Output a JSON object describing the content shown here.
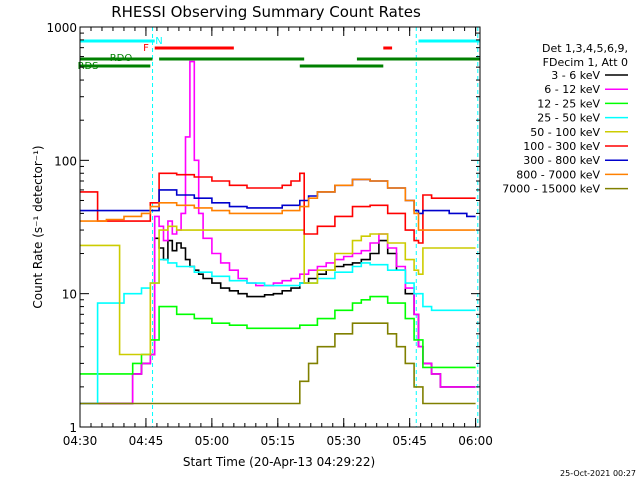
{
  "chart_data": {
    "type": "line",
    "title": "RHESSI Observing Summary Count Rates",
    "ylabel": "Count Rate (s⁻¹ detector⁻¹)",
    "xlabel": "Start Time (20-Apr-13 04:29:22)",
    "yscale": "log",
    "ylim": [
      1,
      1000
    ],
    "xlim_minutes": [
      270,
      361
    ],
    "y_ticks": [
      {
        "value": 1,
        "label": "1"
      },
      {
        "value": 10,
        "label": "10"
      },
      {
        "value": 100,
        "label": "100"
      },
      {
        "value": 1000,
        "label": "1000"
      }
    ],
    "x_ticks": [
      {
        "value": 270,
        "label": "04:30"
      },
      {
        "value": 285,
        "label": "04:45"
      },
      {
        "value": 300,
        "label": "05:00"
      },
      {
        "value": 315,
        "label": "05:15"
      },
      {
        "value": 330,
        "label": "05:30"
      },
      {
        "value": 345,
        "label": "05:45"
      },
      {
        "value": 360,
        "label": "06:00"
      }
    ],
    "legend_header": [
      "Det 1,3,4,5,6,9,",
      "FDecim 1, Att 0"
    ],
    "legend_placement": "right",
    "timestamp": "25-Oct-2021 00:27",
    "flags": [
      {
        "label": "N",
        "color": "#00ffff",
        "segments": [
          [
            270,
            287
          ],
          [
            347,
            361
          ]
        ]
      },
      {
        "label": "F",
        "color": "#ff0000",
        "segments": [
          [
            287,
            305
          ],
          [
            339,
            341
          ]
        ]
      },
      {
        "label": "RDO",
        "color": "#008000",
        "segments": [
          [
            270,
            286.5
          ],
          [
            288,
            321
          ],
          [
            333,
            361
          ]
        ]
      },
      {
        "label": "RDS",
        "color": "#008000",
        "segments": [
          [
            270,
            286
          ],
          [
            320,
            339
          ]
        ]
      }
    ],
    "vlines": [
      {
        "x": 286.5,
        "color": "#00ffff"
      },
      {
        "x": 346.5,
        "color": "#00ffff"
      },
      {
        "x": 360.5,
        "color": "#00ffff"
      }
    ],
    "series": [
      {
        "name": "3 - 6 keV",
        "color": "#000000",
        "x": [
          270,
          272,
          274,
          276,
          278,
          280,
          282,
          284,
          286,
          287,
          288,
          289,
          290,
          291,
          292,
          293,
          294,
          295,
          296,
          297,
          298,
          300,
          302,
          304,
          306,
          308,
          310,
          312,
          314,
          316,
          318,
          320,
          322,
          324,
          326,
          328,
          330,
          332,
          334,
          336,
          338,
          340,
          342,
          344,
          346,
          347,
          348,
          350,
          352,
          354,
          356,
          358,
          360
        ],
        "y": [
          1.5,
          1.5,
          1.5,
          1.5,
          1.5,
          1.5,
          2.5,
          3.0,
          3.5,
          26,
          22,
          18,
          25,
          21,
          24,
          22,
          18,
          16,
          15,
          14,
          13,
          12,
          11,
          10.5,
          10,
          9.5,
          9.5,
          9.8,
          10,
          10.5,
          11,
          12,
          13,
          14,
          15,
          16,
          16.5,
          17,
          18,
          20,
          25,
          20,
          15,
          10,
          7,
          4,
          3,
          2.5,
          2,
          2,
          2,
          2,
          2
        ]
      },
      {
        "name": "6 - 12 keV",
        "color": "#ff00ff",
        "x": [
          270,
          272,
          274,
          276,
          278,
          280,
          282,
          284,
          286,
          287,
          288,
          289,
          290,
          291,
          292,
          293,
          294,
          295,
          296,
          297,
          298,
          300,
          302,
          304,
          306,
          308,
          310,
          312,
          314,
          316,
          318,
          320,
          322,
          324,
          326,
          328,
          330,
          332,
          334,
          336,
          338,
          340,
          342,
          344,
          346,
          347,
          348,
          350,
          352,
          354,
          356,
          358,
          360
        ],
        "y": [
          1.5,
          1.5,
          1.5,
          1.5,
          1.5,
          1.5,
          2.5,
          3.0,
          3.5,
          38,
          32,
          25,
          35,
          28,
          30,
          40,
          150,
          550,
          100,
          40,
          26,
          20,
          17,
          15,
          13,
          12,
          11.5,
          11.5,
          12,
          12.5,
          13,
          14,
          15,
          16,
          17,
          18,
          19,
          20,
          21,
          24,
          28,
          22,
          16,
          11,
          7,
          4,
          3,
          2.5,
          2,
          2,
          2,
          2,
          2
        ]
      },
      {
        "name": "12 - 25 keV",
        "color": "#00ff00",
        "x": [
          270,
          274,
          278,
          282,
          284,
          286,
          288,
          292,
          296,
          300,
          304,
          308,
          312,
          316,
          320,
          324,
          328,
          332,
          334,
          336,
          340,
          344,
          346,
          348,
          352,
          356,
          360
        ],
        "y": [
          2.5,
          2.5,
          2.5,
          3.0,
          3.5,
          4.5,
          8,
          7,
          6.5,
          6,
          5.8,
          5.5,
          5.5,
          5.5,
          5.8,
          6.5,
          7.5,
          8.5,
          9,
          9.5,
          8.5,
          6.5,
          4.5,
          2.8,
          2.8,
          2.8,
          2.8
        ]
      },
      {
        "name": "25 - 50 keV",
        "color": "#00ffff",
        "x": [
          270,
          272,
          274,
          276,
          278,
          280,
          282,
          284,
          286,
          288,
          290,
          292,
          296,
          300,
          304,
          308,
          312,
          316,
          320,
          324,
          328,
          332,
          334,
          336,
          340,
          344,
          346,
          348,
          350,
          354,
          358,
          360
        ],
        "y": [
          1.5,
          1.5,
          8.5,
          8.5,
          8.5,
          10,
          10,
          11,
          12,
          18,
          17,
          16,
          14.5,
          13.5,
          12.5,
          12,
          11.5,
          11.5,
          12,
          13,
          14.5,
          16,
          17,
          16.5,
          15,
          12,
          10,
          8,
          7.5,
          7.5,
          7.5,
          7.5
        ]
      },
      {
        "name": "50 - 100 keV",
        "color": "#cccc00",
        "x": [
          270,
          272,
          274,
          276,
          278,
          279,
          281,
          284,
          286,
          288,
          290,
          292,
          296,
          300,
          304,
          308,
          312,
          316,
          320,
          321,
          324,
          328,
          332,
          334,
          336,
          340,
          344,
          346,
          347,
          348,
          350,
          354,
          358,
          360
        ],
        "y": [
          23,
          23,
          23,
          23,
          23,
          3.5,
          3.5,
          3.5,
          12,
          30,
          32,
          30,
          30,
          30,
          30,
          30,
          30,
          30,
          30,
          12,
          15,
          20,
          25,
          27,
          28,
          24,
          18,
          15,
          14,
          22,
          22,
          22,
          22,
          22
        ]
      },
      {
        "name": "100 - 300 keV",
        "color": "#ff0000",
        "x": [
          270,
          272,
          274,
          276,
          278,
          279,
          281,
          284,
          286,
          288,
          292,
          296,
          300,
          304,
          308,
          312,
          316,
          318,
          320,
          321,
          324,
          328,
          332,
          336,
          340,
          344,
          346,
          347,
          348,
          350,
          354,
          358,
          360
        ],
        "y": [
          58,
          58,
          35,
          35,
          35,
          35,
          35,
          35,
          48,
          80,
          78,
          75,
          70,
          65,
          62,
          62,
          65,
          70,
          80,
          28,
          32,
          38,
          45,
          46,
          40,
          30,
          25,
          24,
          55,
          52,
          52,
          52,
          52
        ]
      },
      {
        "name": "300 - 800 keV",
        "color": "#0000cc",
        "x": [
          270,
          272,
          276,
          280,
          284,
          286,
          288,
          292,
          296,
          300,
          304,
          308,
          312,
          316,
          320,
          322,
          324,
          328,
          332,
          336,
          340,
          344,
          346,
          347,
          348,
          350,
          354,
          358,
          360
        ],
        "y": [
          42,
          42,
          42,
          42,
          42,
          42,
          60,
          55,
          52,
          48,
          45,
          44,
          44,
          46,
          50,
          54,
          58,
          65,
          72,
          70,
          62,
          50,
          42,
          40,
          42,
          42,
          40,
          38,
          38
        ]
      },
      {
        "name": "800 - 7000 keV",
        "color": "#ff8000",
        "x": [
          270,
          272,
          276,
          280,
          284,
          286,
          288,
          292,
          296,
          300,
          304,
          308,
          312,
          316,
          320,
          322,
          324,
          328,
          332,
          336,
          340,
          344,
          346,
          347,
          348,
          350,
          354,
          358,
          360
        ],
        "y": [
          35,
          35,
          36,
          38,
          40,
          45,
          48,
          46,
          44,
          42,
          40,
          40,
          40,
          42,
          45,
          52,
          58,
          65,
          72,
          70,
          62,
          50,
          40,
          30,
          30,
          30,
          30,
          30,
          30
        ]
      },
      {
        "name": "7000 - 15000 keV",
        "color": "#808000",
        "x": [
          270,
          276,
          282,
          286,
          288,
          292,
          296,
          300,
          304,
          308,
          312,
          316,
          320,
          322,
          324,
          328,
          332,
          336,
          340,
          342,
          344,
          346,
          348,
          352,
          356,
          360
        ],
        "y": [
          1.5,
          1.5,
          1.5,
          1.5,
          1.5,
          1.5,
          1.5,
          1.5,
          1.5,
          1.5,
          1.5,
          1.5,
          2.2,
          3,
          4,
          5,
          6,
          6,
          5,
          4,
          3,
          2,
          1.5,
          1.5,
          1.5,
          1.5
        ]
      }
    ]
  }
}
